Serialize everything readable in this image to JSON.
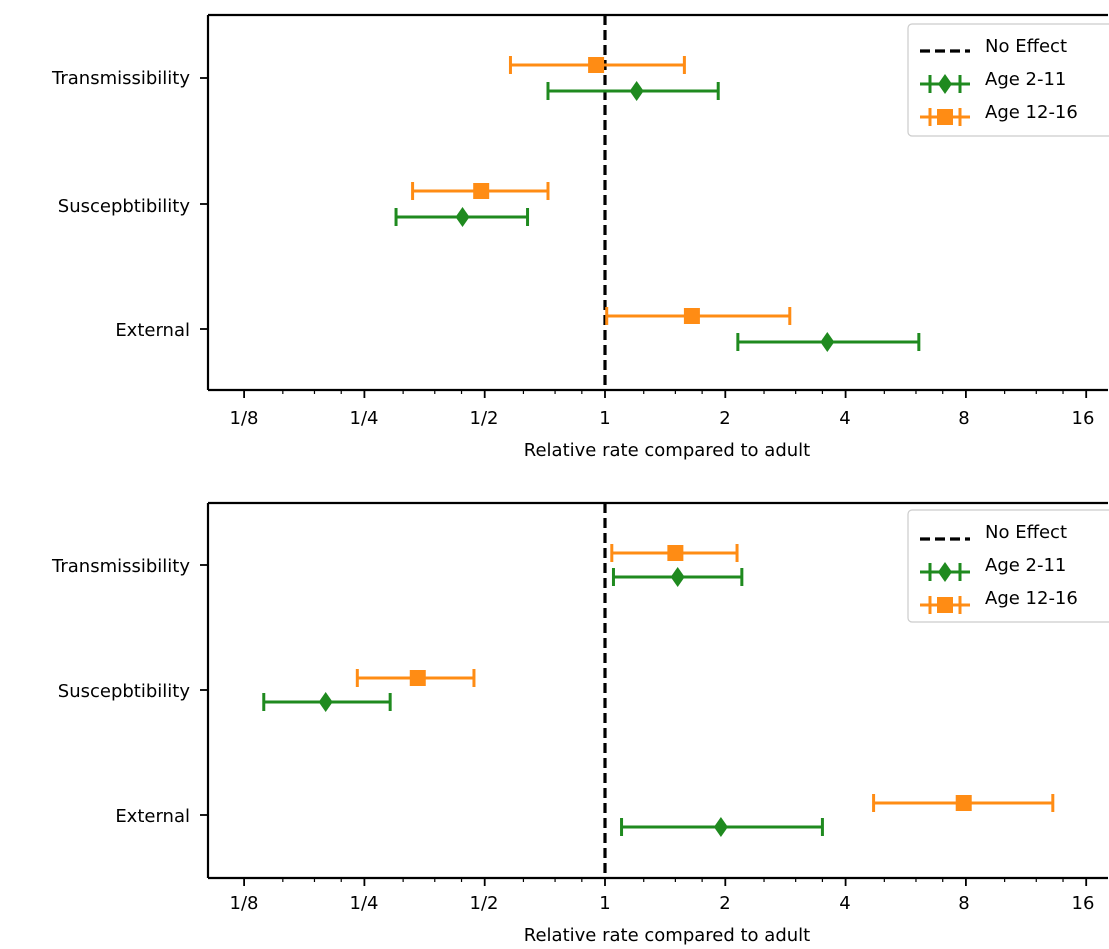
{
  "figure": {
    "panels": [
      {
        "xlabel": "Relative rate compared to adult",
        "categories": [
          "Transmissibility",
          "Susceptibility",
          "External"
        ],
        "category_labels": [
          "Transmissibility",
          "Suscepbtibility",
          "External"
        ],
        "x_ticks": [
          0.125,
          0.25,
          0.5,
          1,
          2,
          4,
          8,
          16
        ],
        "x_tick_labels": [
          "1/8",
          "1/4",
          "1/2",
          "1",
          "2",
          "4",
          "8",
          "16"
        ],
        "legend": [
          "No Effect",
          "Age 2-11",
          "Age 12-16"
        ]
      },
      {
        "xlabel": "Relative rate compared to adult",
        "categories": [
          "Transmissibility",
          "Susceptibility",
          "External"
        ],
        "category_labels": [
          "Transmissibility",
          "Suscepbtibility",
          "External"
        ],
        "x_ticks": [
          0.125,
          0.25,
          0.5,
          1,
          2,
          4,
          8,
          16
        ],
        "x_tick_labels": [
          "1/8",
          "1/4",
          "1/2",
          "1",
          "2",
          "4",
          "8",
          "16"
        ],
        "legend": [
          "No Effect",
          "Age 2-11",
          "Age 12-16"
        ]
      }
    ]
  },
  "chart_data": [
    {
      "type": "scatter",
      "x_scale": "log2",
      "xlim": [
        0.09,
        17
      ],
      "xlabel": "Relative rate compared to adult",
      "categories": [
        "Transmissibility",
        "Suscepbtibility",
        "External"
      ],
      "reference_line": {
        "x": 1,
        "label": "No Effect",
        "style": "dashed",
        "color": "#000000"
      },
      "grid": false,
      "legend_position": "top-right",
      "series": [
        {
          "name": "Age 2-11",
          "marker": "diamond",
          "color": "#1f8a1f",
          "points": [
            {
              "category": "Transmissibility",
              "value": 1.2,
              "low": 0.72,
              "high": 1.92
            },
            {
              "category": "Suscepbtibility",
              "value": 0.44,
              "low": 0.3,
              "high": 0.64
            },
            {
              "category": "External",
              "value": 3.6,
              "low": 2.15,
              "high": 6.1
            }
          ]
        },
        {
          "name": "Age 12-16",
          "marker": "square",
          "color": "#ff8c14",
          "points": [
            {
              "category": "Transmissibility",
              "value": 0.95,
              "low": 0.58,
              "high": 1.58
            },
            {
              "category": "Suscepbtibility",
              "value": 0.49,
              "low": 0.33,
              "high": 0.72
            },
            {
              "category": "External",
              "value": 1.65,
              "low": 1.01,
              "high": 2.9
            }
          ]
        }
      ]
    },
    {
      "type": "scatter",
      "x_scale": "log2",
      "xlim": [
        0.09,
        17
      ],
      "xlabel": "Relative rate compared to adult",
      "categories": [
        "Transmissibility",
        "Suscepbtibility",
        "External"
      ],
      "reference_line": {
        "x": 1,
        "label": "No Effect",
        "style": "dashed",
        "color": "#000000"
      },
      "grid": false,
      "legend_position": "top-right",
      "series": [
        {
          "name": "Age 2-11",
          "marker": "diamond",
          "color": "#1f8a1f",
          "points": [
            {
              "category": "Transmissibility",
              "value": 1.52,
              "low": 1.05,
              "high": 2.2
            },
            {
              "category": "Suscepbtibility",
              "value": 0.2,
              "low": 0.14,
              "high": 0.29
            },
            {
              "category": "External",
              "value": 1.95,
              "low": 1.1,
              "high": 3.5
            }
          ]
        },
        {
          "name": "Age 12-16",
          "marker": "square",
          "color": "#ff8c14",
          "points": [
            {
              "category": "Transmissibility",
              "value": 1.5,
              "low": 1.04,
              "high": 2.14
            },
            {
              "category": "Suscepbtibility",
              "value": 0.34,
              "low": 0.24,
              "high": 0.47
            },
            {
              "category": "External",
              "value": 7.9,
              "low": 4.7,
              "high": 13.2
            }
          ]
        }
      ]
    }
  ],
  "colors": {
    "axis": "#000000",
    "reference": "#000000",
    "age_2_11": "#1f8a1f",
    "age_12_16": "#ff8c14"
  }
}
